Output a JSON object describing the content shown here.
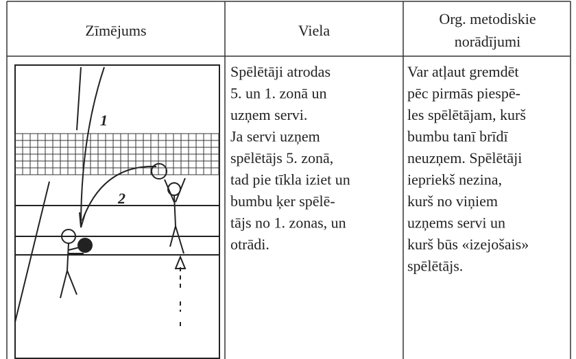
{
  "header": {
    "columns": [
      [
        "Zīmējums"
      ],
      [
        "Viela"
      ],
      [
        "Org. metodiskie",
        "norādījumi"
      ]
    ]
  },
  "rows": [
    {
      "drawing": {
        "labels": [
          "1",
          "2"
        ]
      },
      "viela": [
        "Spēlētāji atrodas",
        "5. un 1. zonā un",
        "uzņem servi.",
        "Ja servi uzņem",
        "spēlētājs 5. zonā,",
        "tad pie tīkla iziet un",
        "bumbu ķer spēlē-",
        "tājs no 1. zonas, un",
        "otrādi."
      ],
      "notes": [
        "Var atļaut gremdēt",
        "pēc pirmās piespē-",
        "les spēlētājam, kurš",
        "bumbu tanī brīdī",
        "neuzņem. Spēlētāji",
        "iepriekš nezina,",
        "kurš no viņiem",
        "uzņems servi un",
        "kurš būs «izejošais»",
        "spēlētājs."
      ]
    }
  ]
}
